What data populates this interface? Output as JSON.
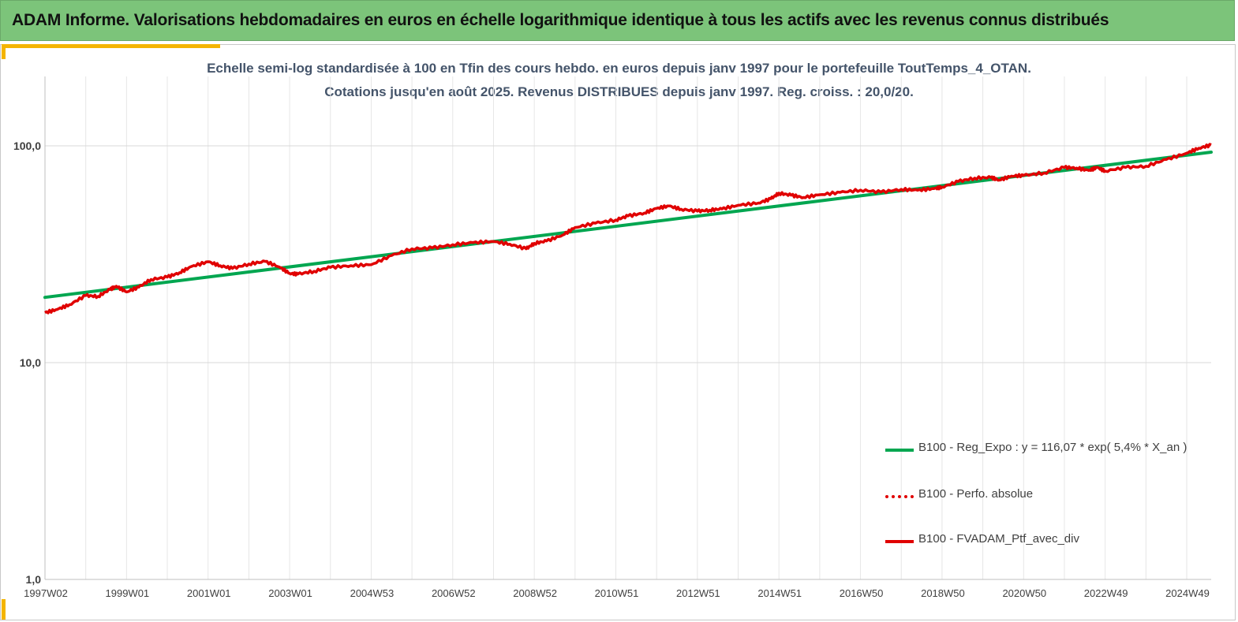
{
  "header": {
    "title": "ADAM Informe. Valorisations hebdomadaires en euros en échelle logarithmique identique à tous les actifs avec les revenus connus distribués"
  },
  "chart_data": {
    "type": "line",
    "title_line1": "Echelle semi-log standardisée  à 100 en Tfin des cours hebdo.  en euros depuis janv 1997 pour le portefeuille ToutTemps_4_OTAN.",
    "title_line2": "Cotations  jusqu'en août 2025. Revenus DISTRIBUES depuis janv 1997. Reg. croiss. : 20,0/20.",
    "y_scale": "log",
    "ylim": [
      1,
      200
    ],
    "y_ticks": [
      {
        "value": 100,
        "label": "100,0"
      },
      {
        "value": 10,
        "label": "10,0"
      },
      {
        "value": 1,
        "label": "1,0"
      }
    ],
    "xlim": [
      1997.0,
      2025.6
    ],
    "x_ticks": [
      {
        "value": 1997.0,
        "label": "1997W02"
      },
      {
        "value": 1999.0,
        "label": "1999W01"
      },
      {
        "value": 2001.0,
        "label": "2001W01"
      },
      {
        "value": 2003.0,
        "label": "2003W01"
      },
      {
        "value": 2005.0,
        "label": "2004W53"
      },
      {
        "value": 2007.0,
        "label": "2006W52"
      },
      {
        "value": 2009.0,
        "label": "2008W52"
      },
      {
        "value": 2011.0,
        "label": "2010W51"
      },
      {
        "value": 2013.0,
        "label": "2012W51"
      },
      {
        "value": 2015.0,
        "label": "2014W51"
      },
      {
        "value": 2017.0,
        "label": "2016W50"
      },
      {
        "value": 2019.0,
        "label": "2018W50"
      },
      {
        "value": 2021.0,
        "label": "2020W50"
      },
      {
        "value": 2023.0,
        "label": "2022W49"
      },
      {
        "value": 2025.0,
        "label": "2024W49"
      }
    ],
    "grid": true,
    "legend_position": "bottom-right",
    "series": [
      {
        "name": "B100 - Reg_Expo : y = 116,07 * exp( 5,4% *  X_an )",
        "color": "#00a650",
        "style": "solid",
        "x": [
          1997.0,
          2025.6
        ],
        "y": [
          20.0,
          93.5
        ]
      },
      {
        "name": "B100 - Perfo. absolue",
        "color": "#e00000",
        "style": "dotted",
        "x": [],
        "y": []
      },
      {
        "name": "B100 - FVADAM_Ptf_avec_div",
        "color": "#e00000",
        "style": "solid",
        "x": [
          1997.0,
          1997.3,
          1997.6,
          1998.0,
          1998.3,
          1998.6,
          1998.75,
          1999.0,
          1999.3,
          1999.6,
          2000.0,
          2000.3,
          2000.6,
          2001.0,
          2001.3,
          2001.6,
          2002.0,
          2002.4,
          2002.75,
          2003.0,
          2003.2,
          2003.6,
          2004.0,
          2004.5,
          2005.0,
          2005.5,
          2006.0,
          2006.5,
          2007.0,
          2007.5,
          2008.0,
          2008.4,
          2008.8,
          2009.0,
          2009.3,
          2009.7,
          2010.0,
          2010.5,
          2011.0,
          2011.3,
          2011.7,
          2012.0,
          2012.3,
          2012.6,
          2013.0,
          2013.3,
          2013.6,
          2014.0,
          2014.5,
          2014.8,
          2015.0,
          2015.3,
          2015.6,
          2016.0,
          2016.5,
          2017.0,
          2017.5,
          2018.0,
          2018.4,
          2018.8,
          2019.0,
          2019.4,
          2019.8,
          2020.2,
          2020.4,
          2020.7,
          2021.0,
          2021.5,
          2022.0,
          2022.3,
          2022.6,
          2022.8,
          2023.0,
          2023.5,
          2024.0,
          2024.5,
          2025.0,
          2025.3,
          2025.6
        ],
        "y": [
          17.0,
          17.6,
          18.5,
          20.4,
          20.2,
          21.8,
          22.5,
          21.2,
          22.3,
          24.2,
          24.8,
          26.0,
          27.8,
          29.2,
          28.0,
          27.2,
          28.5,
          29.3,
          27.6,
          25.8,
          25.6,
          26.4,
          27.5,
          28.0,
          28.3,
          31.2,
          33.5,
          33.8,
          35.0,
          35.8,
          36.2,
          35.2,
          33.5,
          35.5,
          36.4,
          38.8,
          42.0,
          44.0,
          45.5,
          47.5,
          49.0,
          51.5,
          52.8,
          51.0,
          50.0,
          50.5,
          51.2,
          53.2,
          54.5,
          57.0,
          60.5,
          59.2,
          57.8,
          59.5,
          61.0,
          62.5,
          61.2,
          63.0,
          62.4,
          63.5,
          64.5,
          68.5,
          71.0,
          71.5,
          69.5,
          72.5,
          73.0,
          75.0,
          79.5,
          79.0,
          77.0,
          79.5,
          76.5,
          79.5,
          80.5,
          86.5,
          92.5,
          97.5,
          101.0
        ]
      }
    ]
  }
}
